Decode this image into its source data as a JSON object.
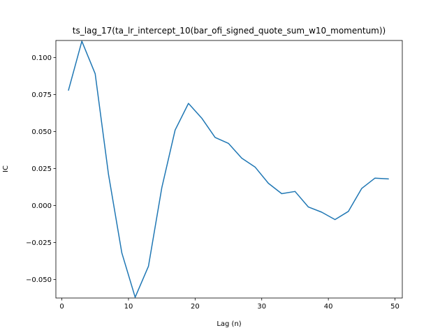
{
  "chart_data": {
    "type": "line",
    "title": "ts_lag_17(ta_lr_intercept_10(bar_ofi_signed_quote_sum_w10_momentum))",
    "xlabel": "Lag (n)",
    "ylabel": "IC",
    "xlim": [
      -0.9,
      51.1
    ],
    "ylim": [
      -0.0625,
      0.1115
    ],
    "xticks": [
      0,
      10,
      20,
      30,
      40,
      50
    ],
    "yticks": [
      -0.05,
      -0.025,
      0.0,
      0.025,
      0.05,
      0.075,
      0.1
    ],
    "ytick_labels": [
      "−0.050",
      "−0.025",
      "0.000",
      "0.025",
      "0.050",
      "0.075",
      "0.100"
    ],
    "grid": false,
    "series": [
      {
        "color": "#1f77b4",
        "x": [
          1,
          3,
          5,
          7,
          9,
          11,
          13,
          15,
          17,
          19,
          21,
          23,
          25,
          27,
          29,
          31,
          33,
          35,
          37,
          39,
          41,
          43,
          45,
          47,
          49
        ],
        "y": [
          0.078,
          0.111,
          0.089,
          0.021,
          -0.032,
          -0.062,
          -0.041,
          0.012,
          0.051,
          0.069,
          0.059,
          0.046,
          0.042,
          0.032,
          0.026,
          0.015,
          0.008,
          0.0095,
          -0.001,
          -0.0045,
          -0.0095,
          -0.004,
          0.0115,
          0.0185,
          0.018
        ]
      }
    ]
  }
}
